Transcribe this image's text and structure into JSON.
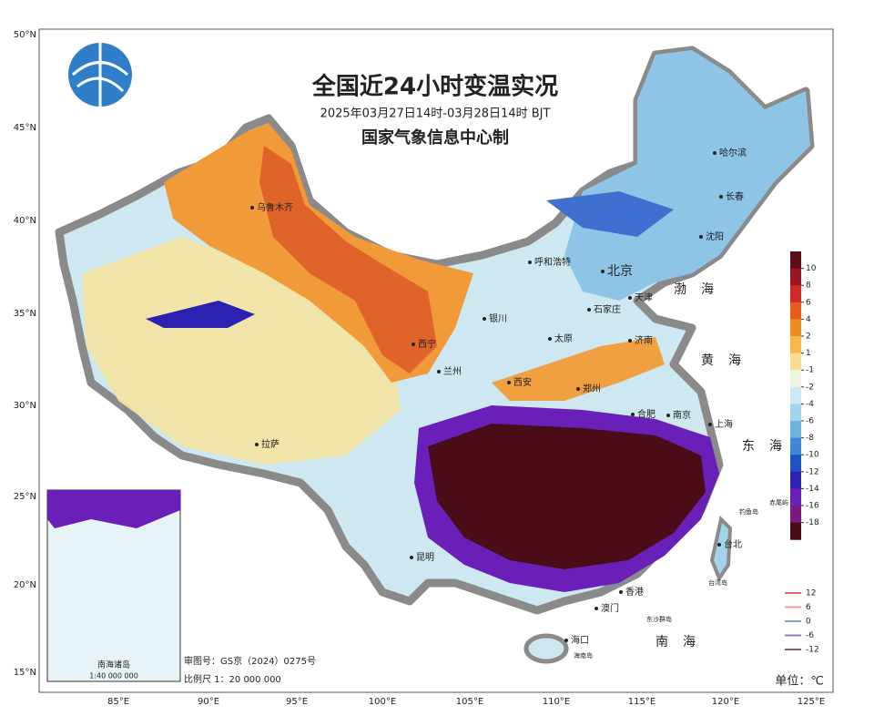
{
  "header": {
    "title": "全国近24小时变温实况",
    "period": "2025年03月27日14时-03月28日14时 BJT",
    "producer": "国家气象信息中心制"
  },
  "latitude_labels": [
    "50°N",
    "45°N",
    "40°N",
    "35°N",
    "30°N",
    "25°N",
    "20°N",
    "15°N"
  ],
  "longitude_labels": [
    "85°E",
    "90°E",
    "95°E",
    "100°E",
    "105°E",
    "110°E",
    "115°E",
    "120°E",
    "125°E"
  ],
  "cities": [
    "乌鲁木齐",
    "哈尔滨",
    "长春",
    "沈阳",
    "北京",
    "呼和浩特",
    "天津",
    "石家庄",
    "银川",
    "太原",
    "济南",
    "西宁",
    "兰州",
    "西安",
    "郑州",
    "合肥",
    "南京",
    "上海",
    "拉萨",
    "昆明",
    "香港",
    "澳门",
    "海口",
    "台北"
  ],
  "seas": [
    "渤海",
    "黄海",
    "东海",
    "南海"
  ],
  "islands": [
    "钓鱼岛",
    "赤尾屿",
    "台湾岛",
    "东沙群岛",
    "海南岛"
  ],
  "colorbar": {
    "ticks": [
      10,
      8,
      6,
      4,
      2,
      1,
      -1,
      -2,
      -4,
      -6,
      -8,
      -10,
      -12,
      -14,
      -16,
      -18
    ],
    "colors": [
      "#5e0c16",
      "#9b1620",
      "#d12a26",
      "#e85a1e",
      "#f08c24",
      "#f6b848",
      "#f6de8e",
      "#eef6e2",
      "#cdeaf2",
      "#a3d4ec",
      "#70b3e3",
      "#3f86d6",
      "#1f52c4",
      "#2b22b2",
      "#6a1fb8",
      "#7a1a7e",
      "#4a0c16"
    ]
  },
  "contour_legend": {
    "levels": [
      12,
      6,
      0,
      -6,
      -12
    ],
    "colors": [
      "#e07070",
      "#e8a0a0",
      "#7fa0e0",
      "#9a78c8",
      "#8a5a7a"
    ]
  },
  "unit": "单位：℃",
  "approval": "审图号：GS京（2024）0275号",
  "scale": "比例尺 1：20 000 000",
  "inset": {
    "title": "南海诸岛",
    "scale": "1:40 000 000"
  }
}
